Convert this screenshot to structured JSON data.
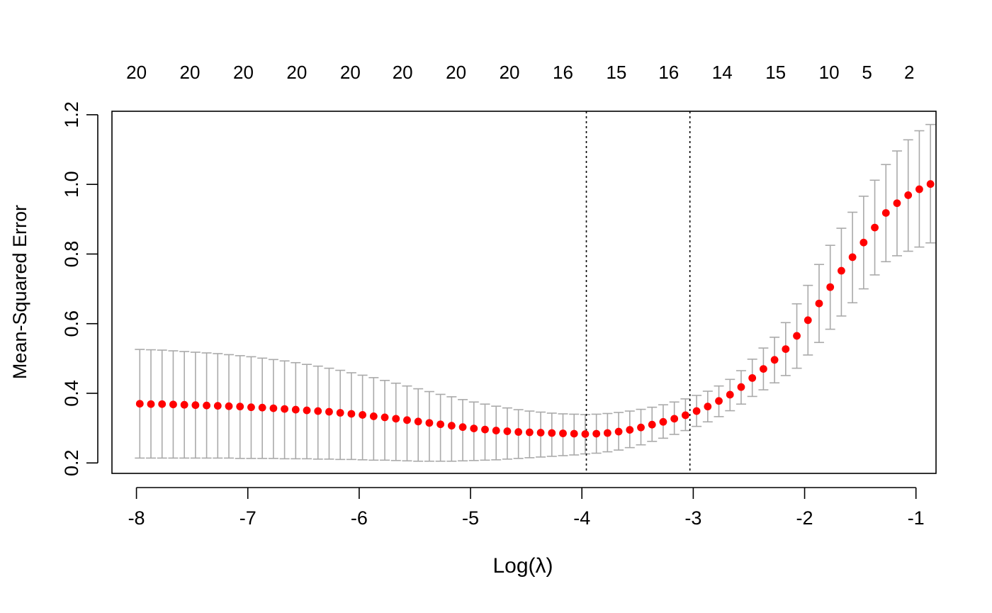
{
  "chart_data": {
    "type": "scatter",
    "xlabel": "Log(λ)",
    "ylabel": "Mean-Squared Error",
    "xlim": [
      -8.22,
      -0.82
    ],
    "ylim": [
      0.17,
      1.21
    ],
    "x_ticks": [
      "-8",
      "-7",
      "-6",
      "-5",
      "-4",
      "-3",
      "-2",
      "-1"
    ],
    "y_ticks": [
      "0.2",
      "0.4",
      "0.6",
      "0.8",
      "1.0",
      "1.2"
    ],
    "top_axis_labels": [
      {
        "x": -8.0,
        "label": "20"
      },
      {
        "x": -7.52,
        "label": "20"
      },
      {
        "x": -7.04,
        "label": "20"
      },
      {
        "x": -6.56,
        "label": "20"
      },
      {
        "x": -6.08,
        "label": "20"
      },
      {
        "x": -5.61,
        "label": "20"
      },
      {
        "x": -5.13,
        "label": "20"
      },
      {
        "x": -4.65,
        "label": "20"
      },
      {
        "x": -4.17,
        "label": "16"
      },
      {
        "x": -3.69,
        "label": "15"
      },
      {
        "x": -3.22,
        "label": "16"
      },
      {
        "x": -2.74,
        "label": "14"
      },
      {
        "x": -2.26,
        "label": "15"
      },
      {
        "x": -1.78,
        "label": "10"
      },
      {
        "x": -1.44,
        "label": "5"
      },
      {
        "x": -1.06,
        "label": "2"
      }
    ],
    "vlines": [
      -3.96,
      -3.03
    ],
    "point_color": "#ff0000",
    "errorbar_color": "#aaaaaa",
    "x": [
      -7.97,
      -7.87,
      -7.77,
      -7.67,
      -7.57,
      -7.47,
      -7.37,
      -7.27,
      -7.17,
      -7.07,
      -6.97,
      -6.87,
      -6.77,
      -6.67,
      -6.57,
      -6.47,
      -6.37,
      -6.27,
      -6.17,
      -6.07,
      -5.97,
      -5.87,
      -5.77,
      -5.67,
      -5.57,
      -5.47,
      -5.37,
      -5.27,
      -5.17,
      -5.07,
      -4.97,
      -4.87,
      -4.77,
      -4.67,
      -4.57,
      -4.47,
      -4.37,
      -4.27,
      -4.17,
      -4.07,
      -3.97,
      -3.87,
      -3.77,
      -3.67,
      -3.57,
      -3.47,
      -3.37,
      -3.27,
      -3.17,
      -3.07,
      -2.97,
      -2.87,
      -2.77,
      -2.67,
      -2.57,
      -2.47,
      -2.37,
      -2.27,
      -2.17,
      -2.07,
      -1.97,
      -1.87,
      -1.77,
      -1.67,
      -1.57,
      -1.47,
      -1.37,
      -1.27,
      -1.17,
      -1.07,
      -0.97,
      -0.87
    ],
    "mse": [
      0.37,
      0.369,
      0.369,
      0.368,
      0.367,
      0.366,
      0.365,
      0.364,
      0.363,
      0.362,
      0.36,
      0.359,
      0.357,
      0.355,
      0.353,
      0.351,
      0.349,
      0.347,
      0.344,
      0.341,
      0.338,
      0.334,
      0.331,
      0.327,
      0.323,
      0.319,
      0.315,
      0.311,
      0.307,
      0.303,
      0.299,
      0.296,
      0.293,
      0.291,
      0.289,
      0.288,
      0.287,
      0.286,
      0.285,
      0.284,
      0.283,
      0.284,
      0.286,
      0.29,
      0.295,
      0.302,
      0.31,
      0.318,
      0.327,
      0.337,
      0.349,
      0.362,
      0.378,
      0.396,
      0.418,
      0.444,
      0.47,
      0.496,
      0.527,
      0.565,
      0.61,
      0.658,
      0.705,
      0.752,
      0.791,
      0.833,
      0.876,
      0.918,
      0.946,
      0.969,
      0.986,
      1.001
    ],
    "upper": [
      0.526,
      0.525,
      0.524,
      0.522,
      0.52,
      0.518,
      0.516,
      0.514,
      0.511,
      0.508,
      0.505,
      0.501,
      0.497,
      0.493,
      0.488,
      0.483,
      0.478,
      0.472,
      0.466,
      0.459,
      0.452,
      0.445,
      0.437,
      0.429,
      0.421,
      0.413,
      0.405,
      0.397,
      0.39,
      0.382,
      0.375,
      0.369,
      0.363,
      0.358,
      0.353,
      0.349,
      0.346,
      0.343,
      0.341,
      0.34,
      0.339,
      0.34,
      0.342,
      0.345,
      0.349,
      0.354,
      0.36,
      0.367,
      0.375,
      0.384,
      0.394,
      0.406,
      0.421,
      0.44,
      0.465,
      0.498,
      0.53,
      0.561,
      0.603,
      0.657,
      0.71,
      0.77,
      0.825,
      0.874,
      0.92,
      0.966,
      1.012,
      1.057,
      1.096,
      1.128,
      1.154,
      1.172
    ],
    "lower": [
      0.214,
      0.214,
      0.214,
      0.214,
      0.214,
      0.214,
      0.214,
      0.214,
      0.214,
      0.213,
      0.213,
      0.213,
      0.213,
      0.212,
      0.212,
      0.212,
      0.211,
      0.211,
      0.21,
      0.21,
      0.209,
      0.208,
      0.208,
      0.207,
      0.206,
      0.205,
      0.205,
      0.205,
      0.205,
      0.206,
      0.207,
      0.208,
      0.209,
      0.211,
      0.213,
      0.215,
      0.217,
      0.219,
      0.221,
      0.223,
      0.226,
      0.228,
      0.232,
      0.237,
      0.244,
      0.252,
      0.262,
      0.271,
      0.282,
      0.293,
      0.305,
      0.318,
      0.333,
      0.35,
      0.369,
      0.391,
      0.41,
      0.43,
      0.451,
      0.472,
      0.51,
      0.546,
      0.584,
      0.622,
      0.66,
      0.7,
      0.74,
      0.778,
      0.795,
      0.808,
      0.82,
      0.832
    ]
  }
}
